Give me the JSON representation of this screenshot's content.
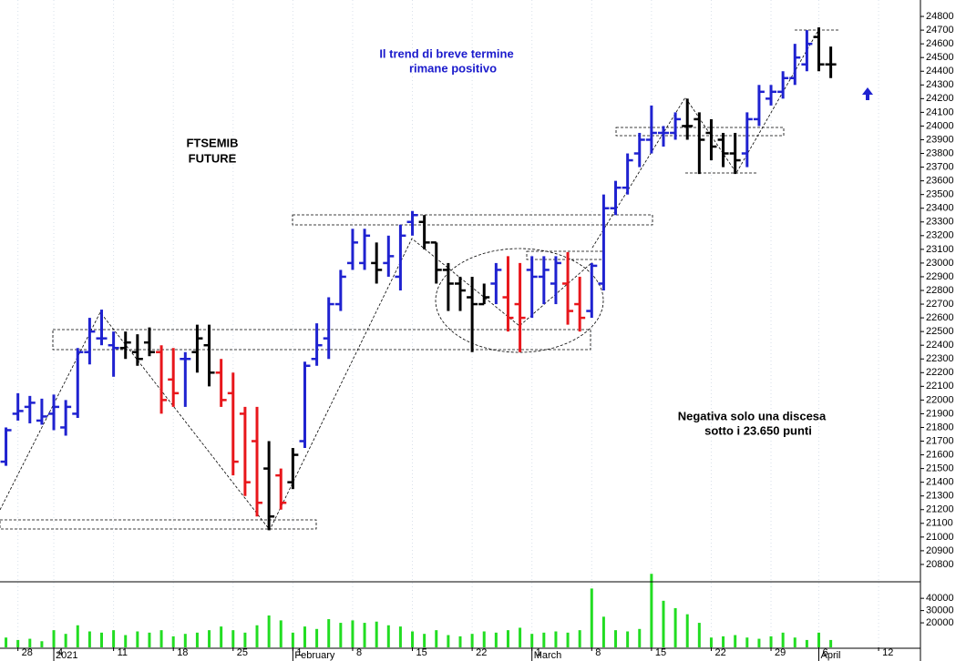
{
  "chart_data": {
    "type": "ohlc",
    "annotations": [
      [
        "FTSEMIB",
        "FUTURE"
      ],
      [
        "Il trend di breve termine",
        "rimane positivo"
      ],
      [
        "Negativa solo una discesa",
        "sotto i 23.650 punti"
      ]
    ],
    "annotation_colors": [
      "#000000",
      "#1a1acc",
      "#000000"
    ],
    "palette": {
      "up": "#1f22d0",
      "down": "#e8161b",
      "flat": "#000000"
    },
    "bars": [
      [
        21550,
        21800,
        21520,
        21780
      ],
      [
        21900,
        22050,
        21850,
        21920
      ],
      [
        21950,
        22030,
        21830,
        21980
      ],
      [
        21850,
        22010,
        21820,
        21880
      ],
      [
        21900,
        22040,
        21780,
        21950
      ],
      [
        21800,
        22000,
        21740,
        21950
      ],
      [
        21900,
        22380,
        21870,
        22350
      ],
      [
        22350,
        22600,
        22260,
        22500
      ],
      [
        22450,
        22660,
        22400,
        22450
      ],
      [
        22400,
        22500,
        22170,
        22380
      ],
      [
        22380,
        22500,
        22300,
        22420
      ],
      [
        22350,
        22480,
        22250,
        22300
      ],
      [
        22420,
        22530,
        22320,
        22350
      ],
      [
        22350,
        22400,
        21900,
        22000
      ],
      [
        22150,
        22380,
        21950,
        22050
      ],
      [
        22300,
        22350,
        21950,
        22300
      ],
      [
        22350,
        22550,
        22200,
        22450
      ],
      [
        22400,
        22550,
        22100,
        22200
      ],
      [
        22200,
        22300,
        21950,
        22000
      ],
      [
        22050,
        22200,
        21450,
        21550
      ],
      [
        21900,
        21950,
        21300,
        21400
      ],
      [
        21700,
        21950,
        21150,
        21250
      ],
      [
        21500,
        21700,
        21050,
        21150
      ],
      [
        21450,
        21500,
        21200,
        21250
      ],
      [
        21400,
        21650,
        21350,
        21600
      ],
      [
        21700,
        22280,
        21650,
        22250
      ],
      [
        22300,
        22560,
        22250,
        22400
      ],
      [
        22450,
        22750,
        22300,
        22700
      ],
      [
        22700,
        22950,
        22650,
        22900
      ],
      [
        23000,
        23250,
        22950,
        23150
      ],
      [
        23000,
        23250,
        22950,
        23200
      ],
      [
        23000,
        23150,
        22850,
        22950
      ],
      [
        23000,
        23200,
        22900,
        23050
      ],
      [
        22900,
        23280,
        22800,
        23200
      ],
      [
        23300,
        23380,
        23200,
        23350
      ],
      [
        23300,
        23350,
        23100,
        23150
      ],
      [
        23150,
        23150,
        22850,
        22950
      ],
      [
        22950,
        23000,
        22650,
        22850
      ],
      [
        22850,
        22900,
        22650,
        22800
      ],
      [
        22750,
        22900,
        22350,
        22700
      ],
      [
        22700,
        22850,
        22700,
        22750
      ],
      [
        22850,
        23000,
        22700,
        22950
      ],
      [
        22750,
        23050,
        22500,
        22600
      ],
      [
        22700,
        23000,
        22350,
        22600
      ],
      [
        22950,
        23050,
        22600,
        22900
      ],
      [
        22900,
        23050,
        22700,
        22950
      ],
      [
        22850,
        23050,
        22700,
        23000
      ],
      [
        22850,
        23080,
        22550,
        22650
      ],
      [
        22700,
        22900,
        22500,
        22600
      ],
      [
        22650,
        23000,
        22600,
        22980
      ],
      [
        22850,
        23500,
        22800,
        23400
      ],
      [
        23400,
        23600,
        23350,
        23550
      ],
      [
        23550,
        23800,
        23500,
        23750
      ],
      [
        23800,
        23950,
        23700,
        23900
      ],
      [
        23900,
        24150,
        23800,
        23950
      ],
      [
        23950,
        24000,
        23850,
        23950
      ],
      [
        23950,
        24100,
        23900,
        24050
      ],
      [
        24000,
        24200,
        23900,
        24000
      ],
      [
        24050,
        24100,
        23650,
        23900
      ],
      [
        23950,
        24050,
        23750,
        23850
      ],
      [
        23900,
        23950,
        23700,
        23800
      ],
      [
        23800,
        23950,
        23650,
        23750
      ],
      [
        23800,
        24100,
        23700,
        24050
      ],
      [
        24050,
        24300,
        24000,
        24250
      ],
      [
        24200,
        24300,
        24150,
        24250
      ],
      [
        24250,
        24400,
        24200,
        24350
      ],
      [
        24350,
        24600,
        24300,
        24500
      ],
      [
        24450,
        24700,
        24400,
        24600
      ],
      [
        24650,
        24720,
        24400,
        24450
      ],
      [
        24450,
        24580,
        24350,
        24450
      ]
    ],
    "bar_colors": [
      "up",
      "up",
      "up",
      "up",
      "up",
      "up",
      "up",
      "up",
      "up",
      "up",
      "flat",
      "flat",
      "flat",
      "down",
      "down",
      "up",
      "flat",
      "flat",
      "down",
      "down",
      "down",
      "down",
      "flat",
      "down",
      "flat",
      "up",
      "up",
      "up",
      "up",
      "up",
      "up",
      "flat",
      "up",
      "up",
      "up",
      "flat",
      "flat",
      "flat",
      "flat",
      "flat",
      "flat",
      "up",
      "down",
      "down",
      "up",
      "up",
      "up",
      "down",
      "down",
      "up",
      "up",
      "up",
      "up",
      "up",
      "up",
      "up",
      "up",
      "flat",
      "flat",
      "flat",
      "flat",
      "flat",
      "up",
      "up",
      "up",
      "up",
      "up",
      "up",
      "flat",
      "flat"
    ],
    "volume": [
      8000,
      6000,
      7000,
      5000,
      14000,
      11000,
      18000,
      13000,
      12000,
      14000,
      10000,
      13000,
      12000,
      14000,
      9000,
      11000,
      12000,
      14000,
      17000,
      14000,
      12000,
      18000,
      26000,
      22000,
      12000,
      17000,
      15000,
      23000,
      20000,
      22000,
      20000,
      21000,
      18000,
      17000,
      13000,
      11000,
      14000,
      10000,
      9000,
      11000,
      13000,
      12000,
      14000,
      16000,
      11000,
      12000,
      13000,
      12000,
      14000,
      48000,
      25000,
      14000,
      13000,
      15000,
      60000,
      38000,
      32000,
      27000,
      20000,
      8000,
      9000,
      10000,
      8000,
      7000,
      9000,
      12000,
      8000,
      6000,
      12000,
      6000
    ],
    "volume_color": "#22dd22",
    "xlim": [
      -0.5,
      76.5
    ],
    "xticks": [
      {
        "value": 1,
        "label": "28"
      },
      {
        "value": 4,
        "label": "4"
      },
      {
        "value": 9,
        "label": "11"
      },
      {
        "value": 14,
        "label": "18"
      },
      {
        "value": 19,
        "label": "25"
      },
      {
        "value": 24,
        "label": "1"
      },
      {
        "value": 29,
        "label": "8"
      },
      {
        "value": 34,
        "label": "15"
      },
      {
        "value": 39,
        "label": "22"
      },
      {
        "value": 44,
        "label": "1"
      },
      {
        "value": 49,
        "label": "8"
      },
      {
        "value": 54,
        "label": "15"
      },
      {
        "value": 59,
        "label": "22"
      },
      {
        "value": 64,
        "label": "29"
      },
      {
        "value": 68,
        "label": "6"
      },
      {
        "value": 73,
        "label": "12"
      }
    ],
    "month_ticks": [
      {
        "value": 4,
        "label": "2021"
      },
      {
        "value": 24,
        "label": "February"
      },
      {
        "value": 44,
        "label": "March"
      },
      {
        "value": 68,
        "label": "April"
      }
    ],
    "ylim": [
      20680,
      24920
    ],
    "yticks": [
      20800,
      20900,
      21000,
      21100,
      21200,
      21300,
      21400,
      21500,
      21600,
      21700,
      21800,
      21900,
      22000,
      22100,
      22200,
      22300,
      22400,
      22500,
      22600,
      22700,
      22800,
      22900,
      23000,
      23100,
      23200,
      23300,
      23400,
      23500,
      23600,
      23700,
      23800,
      23900,
      24000,
      24100,
      24200,
      24300,
      24400,
      24500,
      24600,
      24700,
      24800
    ],
    "volume_ylim": [
      0,
      52000
    ],
    "volume_ticks": [
      20000,
      30000,
      40000
    ]
  }
}
